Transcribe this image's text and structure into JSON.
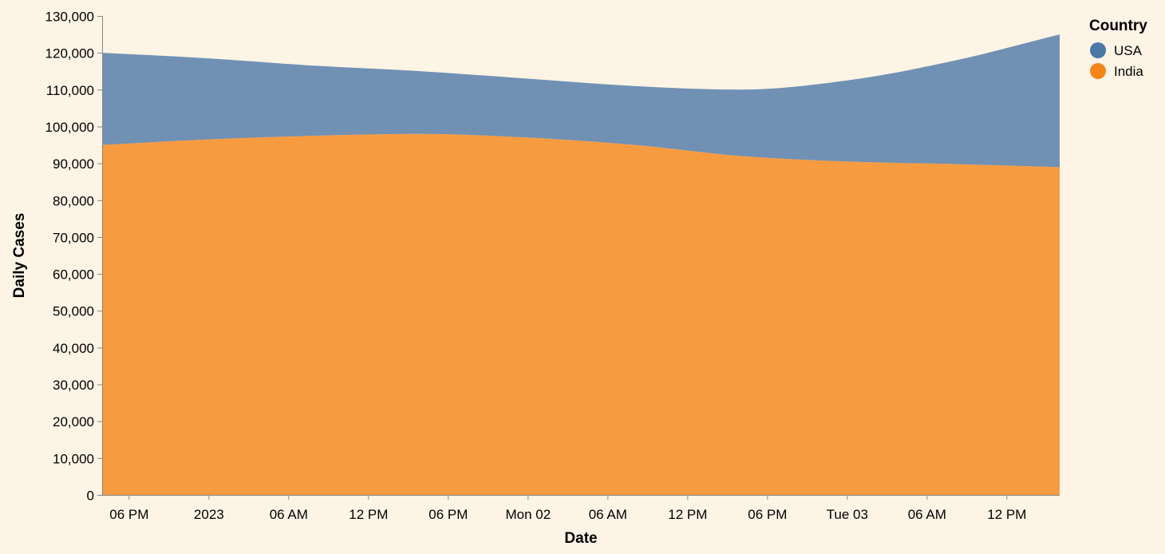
{
  "chart_data": {
    "type": "area",
    "stacked": true,
    "xlabel": "Date",
    "ylabel": "Daily Cases",
    "x_tick_labels": [
      "06 PM",
      "2023",
      "06 AM",
      "12 PM",
      "06 PM",
      "Mon 02",
      "06 AM",
      "12 PM",
      "06 PM",
      "Tue 03",
      "06 AM",
      "12 PM"
    ],
    "x_tick_times": [
      "2022-12-31T18:00",
      "2023-01-01T00:00",
      "2023-01-01T06:00",
      "2023-01-01T12:00",
      "2023-01-01T18:00",
      "2023-01-02T00:00",
      "2023-01-02T06:00",
      "2023-01-02T12:00",
      "2023-01-02T18:00",
      "2023-01-03T00:00",
      "2023-01-03T06:00",
      "2023-01-03T12:00"
    ],
    "x": [
      "2022-12-31T16:00",
      "2023-01-01T00:00",
      "2023-01-01T08:00",
      "2023-01-01T16:00",
      "2023-01-02T00:00",
      "2023-01-02T08:00",
      "2023-01-02T16:00",
      "2023-01-03T00:00",
      "2023-01-03T08:00",
      "2023-01-03T16:00"
    ],
    "ylim": [
      0,
      130000
    ],
    "y_ticks": [
      0,
      10000,
      20000,
      30000,
      40000,
      50000,
      60000,
      70000,
      80000,
      90000,
      100000,
      110000,
      120000,
      130000
    ],
    "y_tick_labels": [
      "0",
      "10,000",
      "20,000",
      "30,000",
      "40,000",
      "50,000",
      "60,000",
      "70,000",
      "80,000",
      "90,000",
      "100,000",
      "110,000",
      "120,000",
      "130,000"
    ],
    "series": [
      {
        "name": "USA",
        "color": "#4c78a8",
        "values": [
          25000,
          22000,
          19000,
          17000,
          16000,
          16000,
          18000,
          22000,
          28000,
          36000
        ]
      },
      {
        "name": "India",
        "color": "#f58518",
        "values": [
          95000,
          96500,
          97500,
          98000,
          97000,
          95000,
          92000,
          90500,
          89800,
          89000
        ]
      }
    ],
    "area_opacity": 0.8,
    "legend": {
      "title": "Country",
      "position": "top-right"
    },
    "grid": false
  }
}
